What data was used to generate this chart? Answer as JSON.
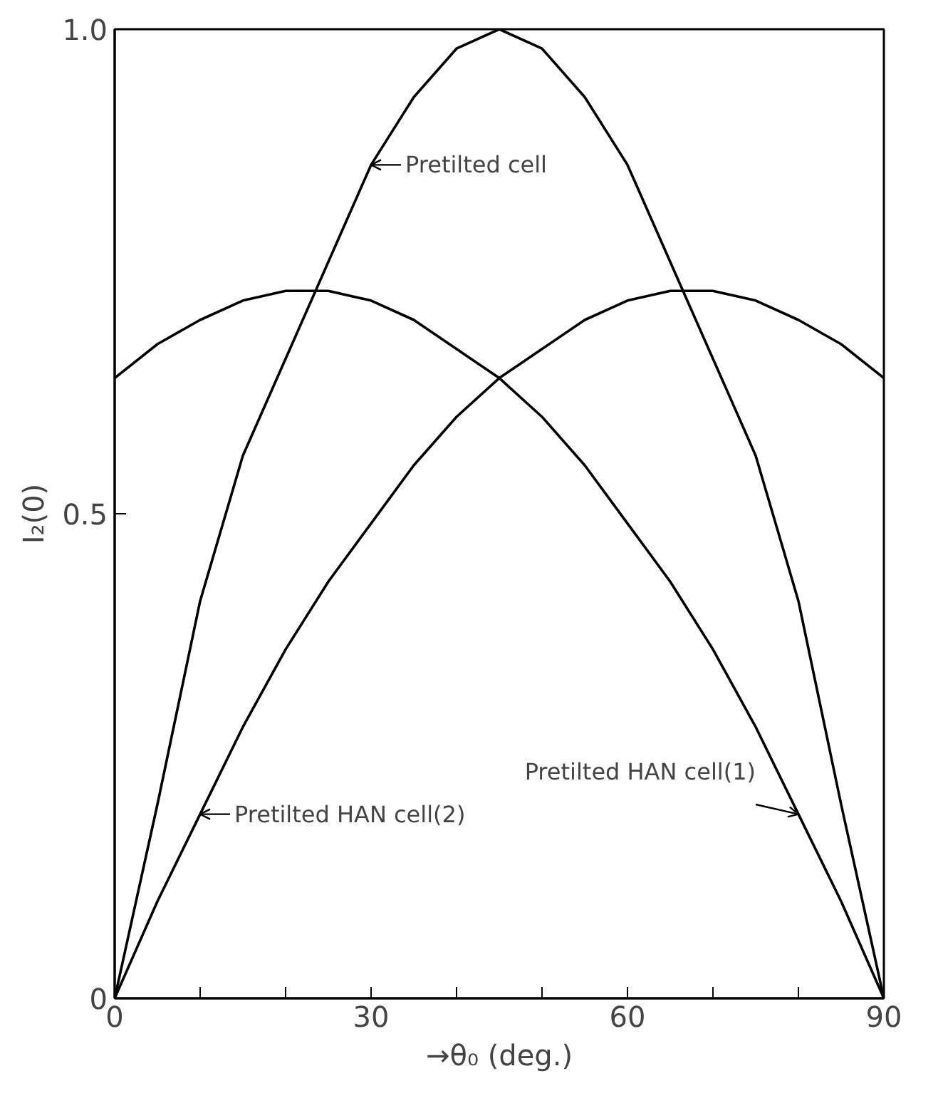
{
  "chart_data": {
    "type": "line",
    "xlabel": "→θ₀ (deg.)",
    "ylabel": "I₂(0)",
    "x": [
      0,
      5,
      10,
      15,
      20,
      25,
      30,
      35,
      40,
      45,
      50,
      55,
      60,
      65,
      70,
      75,
      80,
      85,
      90
    ],
    "series": [
      {
        "color": "#000000",
        "values": [
          0,
          0.2,
          0.41,
          0.56,
          0.66,
          0.76,
          0.86,
          0.93,
          0.98,
          1.0,
          0.98,
          0.93,
          0.86,
          0.76,
          0.66,
          0.56,
          0.41,
          0.2,
          0
        ]
      },
      {
        "color": "#000000",
        "values": [
          0.64,
          0.675,
          0.7,
          0.72,
          0.73,
          0.73,
          0.72,
          0.7,
          0.67,
          0.64,
          0.6,
          0.55,
          0.49,
          0.43,
          0.36,
          0.28,
          0.19,
          0.1,
          0
        ]
      },
      {
        "color": "#000000",
        "values": [
          0,
          0.1,
          0.19,
          0.28,
          0.36,
          0.43,
          0.49,
          0.55,
          0.6,
          0.64,
          0.67,
          0.7,
          0.72,
          0.73,
          0.73,
          0.72,
          0.7,
          0.675,
          0.64
        ]
      }
    ],
    "xlim": [
      0,
      90
    ],
    "ylim": [
      0,
      1
    ],
    "xticks": [
      0,
      {
        "value": 10,
        "label": null
      },
      {
        "value": 20,
        "label": null
      },
      30,
      {
        "value": 40,
        "label": null
      },
      {
        "value": 50,
        "label": null
      },
      60,
      {
        "value": 70,
        "label": null
      },
      {
        "value": 80,
        "label": null
      },
      90
    ],
    "yticks": [
      0,
      0.5,
      {
        "value": 1.0,
        "label": "1.0"
      }
    ],
    "annotations": [
      {
        "text": "Pretilted cell",
        "x": 30,
        "y": 0.86
      },
      {
        "text": "Pretilted HAN cell(1)",
        "x": 80,
        "y": 0.19
      },
      {
        "text": "Pretilted HAN cell(2)",
        "x": 10,
        "y": 0.19
      }
    ],
    "grid": false,
    "marker": "none",
    "line_style": "solid"
  }
}
